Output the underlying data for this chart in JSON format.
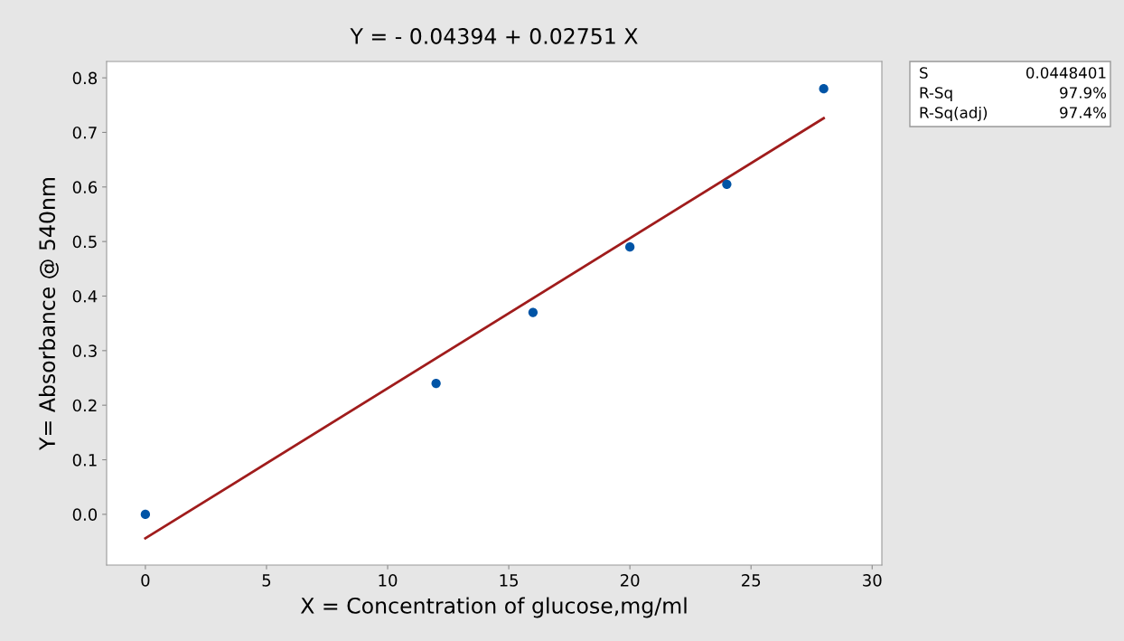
{
  "chart_data": {
    "type": "scatter",
    "title": "Y = - 0.04394 + 0.02751 X",
    "xlabel": "X = Concentration of glucose,mg/ml",
    "ylabel": "Y= Absorbance @ 540nm",
    "series": [
      {
        "color": "#0054a6",
        "x": [
          0,
          12,
          16,
          20,
          24,
          28
        ],
        "values": [
          0.0,
          0.24,
          0.37,
          0.49,
          0.605,
          0.78
        ],
        "marker": "circle"
      },
      {
        "type": "line",
        "color": "#a01c1c",
        "x": [
          0,
          28
        ],
        "values": [
          -0.044,
          0.726
        ],
        "marker": "none",
        "line_style": "solid"
      }
    ],
    "xlim": [
      -1.6,
      30.4
    ],
    "ylim": [
      -0.093,
      0.83
    ],
    "xticks": [
      0,
      5,
      10,
      15,
      20,
      25,
      30
    ],
    "yticks": [
      {
        "value": 0,
        "label": "0.0"
      },
      0.1,
      0.2,
      0.3,
      0.4,
      0.5,
      0.6,
      0.7,
      0.8
    ],
    "grid": false,
    "annotations": [
      "S",
      "0.0448401",
      "R-Sq",
      "97.9%",
      "R-Sq(adj)",
      "97.4%"
    ]
  }
}
